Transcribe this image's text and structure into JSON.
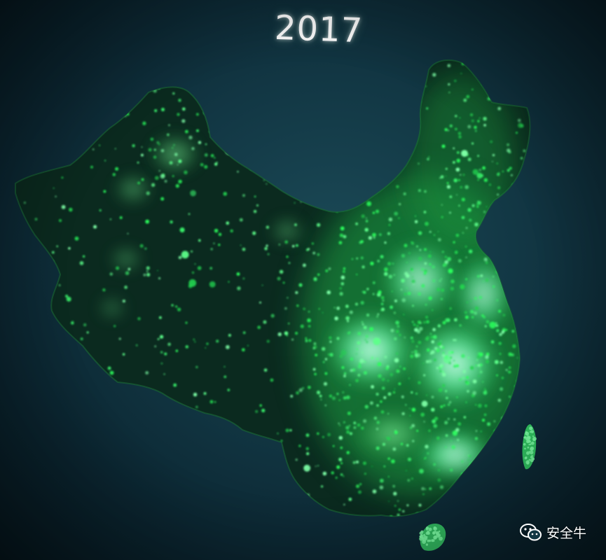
{
  "title": "2017",
  "watermark": {
    "icon": "wechat-icon",
    "text": "安全牛"
  },
  "colors": {
    "background": "#123744",
    "land": "#0c2a22",
    "glow": "#3dff6a",
    "hot": "#c8fff0"
  }
}
